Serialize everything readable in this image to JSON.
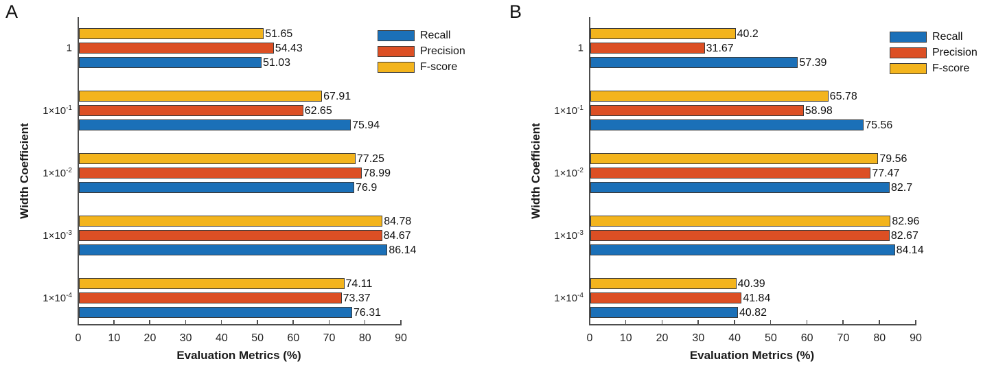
{
  "chart_data": [
    {
      "type": "bar",
      "orientation": "horizontal",
      "panel_label": "A",
      "xlabel": "Evaluation Metrics (%)",
      "ylabel": "Width Coefficient",
      "xlim": [
        0,
        90
      ],
      "xticks": [
        "0",
        "10",
        "20",
        "30",
        "40",
        "50",
        "60",
        "70",
        "80",
        "90"
      ],
      "grid": false,
      "legend_position": "top-right",
      "categories": [
        "1",
        "1×10⁻¹",
        "1×10⁻²",
        "1×10⁻³",
        "1×10⁻⁴"
      ],
      "categories_rich": [
        {
          "base": "1",
          "exp": ""
        },
        {
          "base": "1×10",
          "exp": "-1"
        },
        {
          "base": "1×10",
          "exp": "-2"
        },
        {
          "base": "1×10",
          "exp": "-3"
        },
        {
          "base": "1×10",
          "exp": "-4"
        }
      ],
      "series": [
        {
          "name": "Recall",
          "color": "#1b70b8",
          "values": [
            51.03,
            75.94,
            76.9,
            86.14,
            76.31
          ],
          "labels": [
            "51.03",
            "75.94",
            "76.9",
            "86.14",
            "76.31"
          ]
        },
        {
          "name": "Precision",
          "color": "#dc4f24",
          "values": [
            54.43,
            62.65,
            78.99,
            84.67,
            73.37
          ],
          "labels": [
            "54.43",
            "62.65",
            "78.99",
            "84.67",
            "73.37"
          ]
        },
        {
          "name": "F-score",
          "color": "#f3b41d",
          "values": [
            51.65,
            67.91,
            77.25,
            84.78,
            74.11
          ],
          "labels": [
            "51.65",
            "67.91",
            "77.25",
            "84.78",
            "74.11"
          ]
        }
      ]
    },
    {
      "type": "bar",
      "orientation": "horizontal",
      "panel_label": "B",
      "xlabel": "Evaluation Metrics (%)",
      "ylabel": "Width Coefficient",
      "xlim": [
        0,
        90
      ],
      "xticks": [
        "0",
        "10",
        "20",
        "30",
        "40",
        "50",
        "60",
        "70",
        "80",
        "90"
      ],
      "grid": false,
      "legend_position": "top-right",
      "categories": [
        "1",
        "1×10⁻¹",
        "1×10⁻²",
        "1×10⁻³",
        "1×10⁻⁴"
      ],
      "categories_rich": [
        {
          "base": "1",
          "exp": ""
        },
        {
          "base": "1×10",
          "exp": "-1"
        },
        {
          "base": "1×10",
          "exp": "-2"
        },
        {
          "base": "1×10",
          "exp": "-3"
        },
        {
          "base": "1×10",
          "exp": "-4"
        }
      ],
      "series": [
        {
          "name": "Recall",
          "color": "#1b70b8",
          "values": [
            57.39,
            75.56,
            82.7,
            84.14,
            40.82
          ],
          "labels": [
            "57.39",
            "75.56",
            "82.7",
            "84.14",
            "40.82"
          ]
        },
        {
          "name": "Precision",
          "color": "#dc4f24",
          "values": [
            31.67,
            58.98,
            77.47,
            82.67,
            41.84
          ],
          "labels": [
            "31.67",
            "58.98",
            "77.47",
            "82.67",
            "41.84"
          ]
        },
        {
          "name": "F-score",
          "color": "#f3b41d",
          "values": [
            40.2,
            65.78,
            79.56,
            82.96,
            40.39
          ],
          "labels": [
            "40.2",
            "65.78",
            "79.56",
            "82.96",
            "40.39"
          ]
        }
      ]
    }
  ]
}
